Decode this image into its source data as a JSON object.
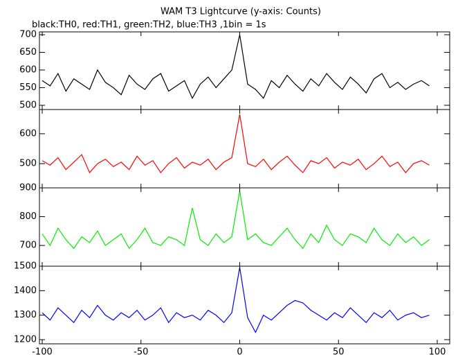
{
  "chart_data": [
    {
      "type": "line",
      "title": "WAM T3 Lightcurve (y-axis: Counts)",
      "subtitle": "black:TH0, red:TH1, green:TH2, blue:TH3 ,1bin = 1s",
      "x": [
        -100,
        -96,
        -92,
        -88,
        -84,
        -80,
        -76,
        -72,
        -68,
        -64,
        -60,
        -56,
        -52,
        -48,
        -44,
        -40,
        -36,
        -32,
        -28,
        -24,
        -20,
        -16,
        -12,
        -8,
        -4,
        0,
        4,
        8,
        12,
        16,
        20,
        24,
        28,
        32,
        36,
        40,
        44,
        48,
        52,
        56,
        60,
        64,
        68,
        72,
        76,
        80,
        84,
        88,
        92,
        96
      ],
      "series": [
        {
          "color": "#000000",
          "values": [
            570,
            555,
            590,
            540,
            575,
            560,
            545,
            600,
            565,
            550,
            530,
            585,
            560,
            545,
            575,
            590,
            540,
            555,
            570,
            520,
            560,
            580,
            550,
            575,
            600,
            700,
            560,
            545,
            520,
            570,
            550,
            585,
            560,
            540,
            575,
            555,
            590,
            565,
            545,
            580,
            560,
            535,
            575,
            590,
            550,
            565,
            545,
            560,
            570,
            555
          ]
        }
      ],
      "xlim": [
        -101.4,
        106.3
      ],
      "ylim": [
        488,
        708
      ],
      "yticks": [
        500,
        550,
        600,
        650,
        700
      ]
    },
    {
      "type": "line",
      "x": [
        -100,
        -96,
        -92,
        -88,
        -84,
        -80,
        -76,
        -72,
        -68,
        -64,
        -60,
        -56,
        -52,
        -48,
        -44,
        -40,
        -36,
        -32,
        -28,
        -24,
        -20,
        -16,
        -12,
        -8,
        -4,
        0,
        4,
        8,
        12,
        16,
        20,
        24,
        28,
        32,
        36,
        40,
        44,
        48,
        52,
        56,
        60,
        64,
        68,
        72,
        76,
        80,
        84,
        88,
        92,
        96
      ],
      "series": [
        {
          "color": "#ff0000",
          "values": [
            510,
            495,
            520,
            480,
            505,
            530,
            470,
            500,
            515,
            490,
            505,
            480,
            525,
            495,
            510,
            470,
            500,
            520,
            485,
            505,
            495,
            515,
            480,
            505,
            520,
            665,
            500,
            490,
            515,
            480,
            505,
            525,
            495,
            470,
            510,
            500,
            520,
            485,
            505,
            495,
            515,
            480,
            500,
            525,
            490,
            505,
            470,
            500,
            510,
            495
          ]
        }
      ],
      "xlim": [
        -101.4,
        106.3
      ],
      "ylim": [
        419,
        681
      ],
      "yticks": [
        500,
        600
      ]
    },
    {
      "type": "line",
      "x": [
        -100,
        -96,
        -92,
        -88,
        -84,
        -80,
        -76,
        -72,
        -68,
        -64,
        -60,
        -56,
        -52,
        -48,
        -44,
        -40,
        -36,
        -32,
        -28,
        -24,
        -20,
        -16,
        -12,
        -8,
        -4,
        0,
        4,
        8,
        12,
        16,
        20,
        24,
        28,
        32,
        36,
        40,
        44,
        48,
        52,
        56,
        60,
        64,
        68,
        72,
        76,
        80,
        84,
        88,
        92,
        96
      ],
      "series": [
        {
          "color": "#00ee00",
          "values": [
            740,
            700,
            760,
            720,
            690,
            730,
            710,
            750,
            700,
            720,
            740,
            690,
            720,
            760,
            710,
            700,
            730,
            720,
            700,
            830,
            720,
            700,
            740,
            710,
            730,
            890,
            720,
            740,
            710,
            700,
            730,
            760,
            720,
            690,
            740,
            710,
            770,
            720,
            700,
            740,
            730,
            710,
            760,
            720,
            700,
            740,
            710,
            730,
            700,
            720
          ]
        }
      ],
      "xlim": [
        -101.4,
        106.3
      ],
      "ylim": [
        628,
        900
      ],
      "yticks": [
        700,
        800,
        900
      ]
    },
    {
      "type": "line",
      "x": [
        -100,
        -96,
        -92,
        -88,
        -84,
        -80,
        -76,
        -72,
        -68,
        -64,
        -60,
        -56,
        -52,
        -48,
        -44,
        -40,
        -36,
        -32,
        -28,
        -24,
        -20,
        -16,
        -12,
        -8,
        -4,
        0,
        4,
        8,
        12,
        16,
        20,
        24,
        28,
        32,
        36,
        40,
        44,
        48,
        52,
        56,
        60,
        64,
        68,
        72,
        76,
        80,
        84,
        88,
        92,
        96
      ],
      "series": [
        {
          "color": "#0000ff",
          "values": [
            1310,
            1280,
            1330,
            1300,
            1270,
            1320,
            1290,
            1340,
            1300,
            1280,
            1310,
            1290,
            1320,
            1280,
            1300,
            1330,
            1270,
            1310,
            1290,
            1300,
            1280,
            1320,
            1300,
            1270,
            1310,
            1495,
            1290,
            1230,
            1300,
            1280,
            1310,
            1340,
            1360,
            1350,
            1320,
            1300,
            1280,
            1310,
            1290,
            1330,
            1300,
            1270,
            1310,
            1290,
            1320,
            1280,
            1300,
            1310,
            1290,
            1300
          ]
        }
      ],
      "xlim": [
        -101.4,
        106.3
      ],
      "ylim": [
        1183,
        1500
      ],
      "yticks": [
        1200,
        1300,
        1400,
        1500
      ],
      "xticks": [
        -100,
        -50,
        0,
        50,
        100
      ]
    }
  ]
}
